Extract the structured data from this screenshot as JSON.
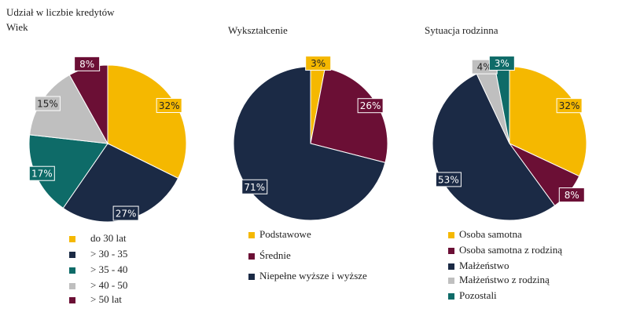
{
  "title": "Udział w liczbie kredytów",
  "chart_data": [
    {
      "type": "pie",
      "title": "Wiek",
      "categories": [
        "do 30 lat",
        "> 30 - 35",
        "> 35 - 40",
        "> 40 - 50",
        "> 50 lat"
      ],
      "values": [
        32,
        27,
        17,
        15,
        8
      ],
      "value_labels": [
        "32%",
        "27%",
        "17%",
        "15%",
        "8%"
      ],
      "colors": [
        "#f5b800",
        "#1b2a45",
        "#0e6b68",
        "#bfbfbf",
        "#6b0f35"
      ]
    },
    {
      "type": "pie",
      "title": "Wykształcenie",
      "categories": [
        "Podstawowe",
        "Średnie",
        "Niepełne wyższe i wyższe"
      ],
      "values": [
        3,
        26,
        71
      ],
      "value_labels": [
        "3%",
        "26%",
        "71%"
      ],
      "colors": [
        "#f5b800",
        "#6b0f35",
        "#1b2a45"
      ]
    },
    {
      "type": "pie",
      "title": "Sytuacja rodzinna",
      "categories": [
        "Osoba samotna",
        "Osoba samotna z rodziną",
        "Małżeństwo",
        "Małżeństwo z rodziną",
        "Pozostali"
      ],
      "values": [
        32,
        8,
        53,
        4,
        3
      ],
      "value_labels": [
        "32%",
        "8%",
        "53%",
        "4%",
        "3%"
      ],
      "colors": [
        "#f5b800",
        "#6b0f35",
        "#1b2a45",
        "#bfbfbf",
        "#0e6b68"
      ]
    }
  ]
}
